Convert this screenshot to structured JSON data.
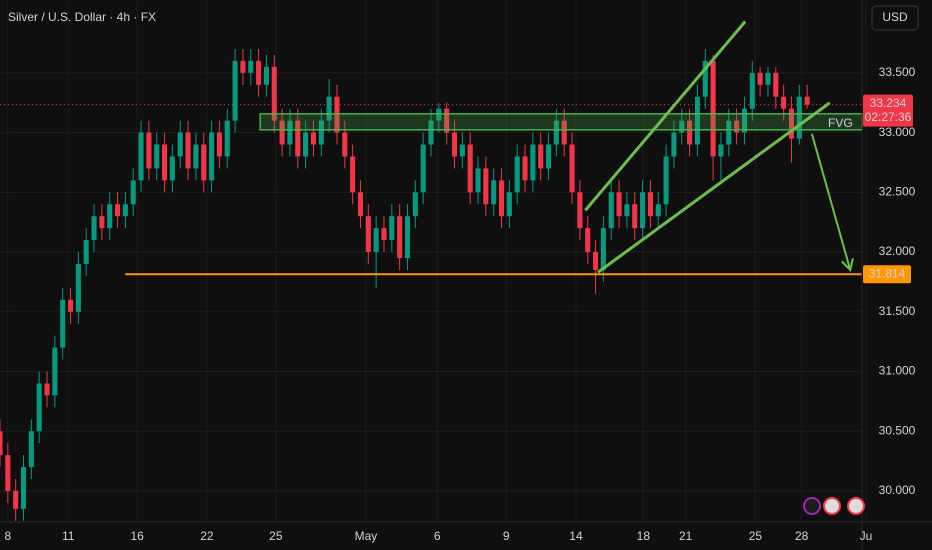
{
  "chart_data": {
    "type": "candlestick",
    "title": "Silver / U.S. Dollar · 4h · FX",
    "currency": "USD",
    "up_color": "#089981",
    "down_color": "#f23645",
    "open": [
      30.5,
      30.3,
      30.0,
      29.85,
      30.2,
      30.5,
      30.9,
      30.8,
      31.2,
      31.6,
      31.5,
      31.9,
      32.1,
      32.3,
      32.2,
      32.4,
      32.3,
      32.4,
      32.6,
      33.0,
      32.7,
      32.9,
      32.6,
      32.8,
      33.0,
      32.7,
      32.9,
      32.6,
      33.0,
      32.8,
      33.1,
      33.6,
      33.5,
      33.6,
      33.4,
      33.55,
      33.1,
      32.9,
      33.1,
      32.8,
      33.0,
      32.9,
      33.1,
      33.3,
      33.0,
      32.8,
      32.5,
      32.3,
      32.0,
      32.2,
      32.1,
      32.3,
      31.95,
      32.3,
      32.5,
      32.9,
      33.1,
      33.2,
      33.0,
      32.8,
      32.9,
      32.5,
      32.7,
      32.4,
      32.6,
      32.3,
      32.5,
      32.8,
      32.6,
      32.9,
      32.7,
      32.9,
      33.1,
      32.9,
      32.5,
      32.2,
      32.0,
      31.85,
      32.2,
      32.5,
      32.3,
      32.4,
      32.2,
      32.5,
      32.3,
      32.4,
      32.8,
      33.0,
      33.1,
      32.9,
      33.3,
      33.6,
      32.8,
      32.9,
      33.1,
      33.0,
      33.2,
      33.5,
      33.4,
      33.5,
      33.3,
      33.2,
      32.95,
      33.3
    ],
    "high": [
      30.6,
      30.4,
      30.1,
      30.3,
      30.6,
      31.0,
      31.0,
      31.3,
      31.7,
      31.7,
      32.0,
      32.2,
      32.4,
      32.4,
      32.5,
      32.5,
      32.5,
      32.7,
      33.1,
      33.1,
      33.0,
      33.0,
      32.9,
      33.1,
      33.1,
      33.0,
      33.0,
      33.1,
      33.1,
      33.2,
      33.7,
      33.7,
      33.7,
      33.7,
      33.65,
      33.65,
      33.2,
      33.2,
      33.2,
      33.1,
      33.1,
      33.2,
      33.45,
      33.4,
      33.1,
      32.9,
      32.6,
      32.4,
      32.3,
      32.3,
      32.4,
      32.4,
      32.4,
      32.6,
      33.0,
      33.2,
      33.25,
      33.25,
      33.1,
      33.0,
      33.0,
      32.8,
      32.8,
      32.7,
      32.7,
      32.6,
      32.9,
      32.9,
      33.0,
      33.0,
      33.0,
      33.2,
      33.2,
      33.0,
      32.6,
      32.3,
      32.1,
      32.3,
      32.6,
      32.6,
      32.5,
      32.5,
      32.6,
      32.6,
      32.5,
      32.9,
      33.1,
      33.2,
      33.2,
      33.4,
      33.7,
      33.65,
      33.0,
      33.2,
      33.2,
      33.3,
      33.6,
      33.55,
      33.55,
      33.55,
      33.4,
      33.3,
      33.4,
      33.4
    ],
    "low": [
      30.2,
      29.9,
      29.75,
      29.75,
      30.1,
      30.4,
      30.7,
      30.7,
      31.1,
      31.4,
      31.4,
      31.8,
      32.0,
      32.1,
      32.1,
      32.2,
      32.2,
      32.3,
      32.5,
      32.6,
      32.6,
      32.5,
      32.5,
      32.7,
      32.6,
      32.6,
      32.5,
      32.5,
      32.7,
      32.7,
      33.0,
      33.4,
      33.4,
      33.3,
      33.3,
      33.0,
      32.8,
      32.8,
      32.7,
      32.7,
      32.8,
      32.8,
      33.0,
      32.9,
      32.7,
      32.4,
      32.2,
      31.9,
      31.7,
      32.0,
      32.0,
      31.85,
      31.85,
      32.2,
      32.4,
      32.8,
      33.0,
      32.9,
      32.7,
      32.7,
      32.4,
      32.4,
      32.3,
      32.3,
      32.2,
      32.2,
      32.4,
      32.5,
      32.5,
      32.6,
      32.6,
      32.8,
      32.8,
      32.4,
      32.1,
      31.9,
      31.65,
      31.75,
      32.1,
      32.2,
      32.2,
      32.1,
      32.1,
      32.2,
      32.2,
      32.3,
      32.7,
      32.9,
      32.8,
      32.8,
      33.2,
      32.6,
      32.6,
      32.8,
      32.9,
      32.9,
      33.1,
      33.3,
      33.3,
      33.2,
      33.1,
      32.75,
      32.9,
      33.2
    ],
    "close": [
      30.3,
      30.0,
      29.85,
      30.2,
      30.5,
      30.9,
      30.8,
      31.2,
      31.6,
      31.5,
      31.9,
      32.1,
      32.3,
      32.2,
      32.4,
      32.3,
      32.4,
      32.6,
      33.0,
      32.7,
      32.9,
      32.6,
      32.8,
      33.0,
      32.7,
      32.9,
      32.6,
      33.0,
      32.8,
      33.1,
      33.6,
      33.5,
      33.6,
      33.4,
      33.55,
      33.1,
      32.9,
      33.1,
      32.8,
      33.0,
      32.9,
      33.1,
      33.3,
      33.0,
      32.8,
      32.5,
      32.3,
      32.0,
      32.2,
      32.1,
      32.3,
      31.95,
      32.3,
      32.5,
      32.9,
      33.1,
      33.2,
      33.0,
      32.8,
      32.9,
      32.5,
      32.7,
      32.4,
      32.6,
      32.3,
      32.5,
      32.8,
      32.6,
      32.9,
      32.7,
      32.9,
      33.1,
      32.9,
      32.5,
      32.2,
      32.0,
      31.85,
      32.2,
      32.5,
      32.3,
      32.4,
      32.2,
      32.5,
      32.3,
      32.4,
      32.8,
      33.0,
      33.1,
      32.9,
      33.3,
      33.6,
      32.8,
      32.9,
      33.1,
      33.0,
      33.2,
      33.5,
      33.4,
      33.5,
      33.3,
      33.2,
      32.95,
      33.3,
      33.234
    ],
    "xlim": [
      0,
      110
    ],
    "xticks": [
      {
        "value": 1,
        "label": "8"
      },
      {
        "value": 8.7,
        "label": "11"
      },
      {
        "value": 17.5,
        "label": "16"
      },
      {
        "value": 26.4,
        "label": "22"
      },
      {
        "value": 35.2,
        "label": "25"
      },
      {
        "value": 46.7,
        "label": "May"
      },
      {
        "value": 55.8,
        "label": "6"
      },
      {
        "value": 64.6,
        "label": "9"
      },
      {
        "value": 73.5,
        "label": "14"
      },
      {
        "value": 82.1,
        "label": "18"
      },
      {
        "value": 87.5,
        "label": "21"
      },
      {
        "value": 96.4,
        "label": "25"
      },
      {
        "value": 102.3,
        "label": "28"
      },
      {
        "value": 110.5,
        "label": "Ju"
      }
    ],
    "ylim": [
      29.74,
      34.11
    ],
    "yticks": [
      {
        "value": 30,
        "label": "30.000"
      },
      {
        "value": 30.5,
        "label": "30.500"
      },
      {
        "value": 31,
        "label": "31.000"
      },
      {
        "value": 31.5,
        "label": "31.500"
      },
      {
        "value": 32,
        "label": "32.000"
      },
      {
        "value": 32.5,
        "label": "32.500"
      },
      {
        "value": 33,
        "label": "33.000"
      },
      {
        "value": 33.5,
        "label": "33.500"
      }
    ],
    "last_price": 33.234,
    "countdown": "02:27:36",
    "support": {
      "value": 31.814,
      "x_start": 16,
      "color": "#ff9800"
    },
    "fvg": {
      "label": "FVG",
      "x_start": 33.2,
      "top": 33.157,
      "bottom": 33.023,
      "color": "#4caf50"
    },
    "trendlines": [
      {
        "x": [
          74.7,
          95.1
        ],
        "y": [
          32.35,
          33.93
        ]
      },
      {
        "x": [
          76.3,
          105.9
        ],
        "y": [
          31.83,
          33.25
        ]
      }
    ],
    "arrow": {
      "x": [
        103.6,
        108.5
      ],
      "y": [
        32.99,
        31.85
      ]
    }
  }
}
